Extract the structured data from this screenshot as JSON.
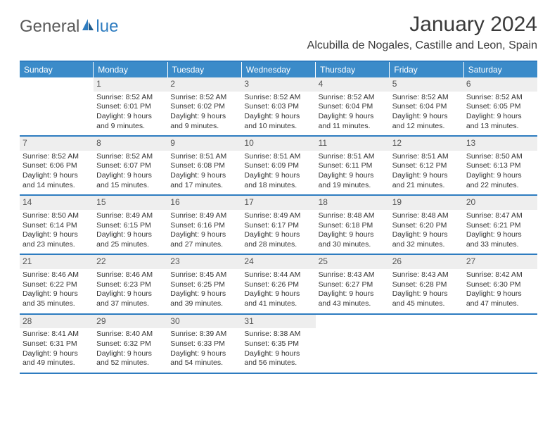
{
  "logo": {
    "part1": "General",
    "part2": "lue"
  },
  "title": "January 2024",
  "location": "Alcubilla de Nogales, Castille and Leon, Spain",
  "header_bg": "#3b8bc9",
  "rule_color": "#2e7cc0",
  "daynum_bg": "#eeeeee",
  "weekdays": [
    "Sunday",
    "Monday",
    "Tuesday",
    "Wednesday",
    "Thursday",
    "Friday",
    "Saturday"
  ],
  "weeks": [
    [
      {
        "n": "",
        "empty": true
      },
      {
        "n": "1",
        "sunrise": "Sunrise: 8:52 AM",
        "sunset": "Sunset: 6:01 PM",
        "d1": "Daylight: 9 hours",
        "d2": "and 9 minutes."
      },
      {
        "n": "2",
        "sunrise": "Sunrise: 8:52 AM",
        "sunset": "Sunset: 6:02 PM",
        "d1": "Daylight: 9 hours",
        "d2": "and 9 minutes."
      },
      {
        "n": "3",
        "sunrise": "Sunrise: 8:52 AM",
        "sunset": "Sunset: 6:03 PM",
        "d1": "Daylight: 9 hours",
        "d2": "and 10 minutes."
      },
      {
        "n": "4",
        "sunrise": "Sunrise: 8:52 AM",
        "sunset": "Sunset: 6:04 PM",
        "d1": "Daylight: 9 hours",
        "d2": "and 11 minutes."
      },
      {
        "n": "5",
        "sunrise": "Sunrise: 8:52 AM",
        "sunset": "Sunset: 6:04 PM",
        "d1": "Daylight: 9 hours",
        "d2": "and 12 minutes."
      },
      {
        "n": "6",
        "sunrise": "Sunrise: 8:52 AM",
        "sunset": "Sunset: 6:05 PM",
        "d1": "Daylight: 9 hours",
        "d2": "and 13 minutes."
      }
    ],
    [
      {
        "n": "7",
        "sunrise": "Sunrise: 8:52 AM",
        "sunset": "Sunset: 6:06 PM",
        "d1": "Daylight: 9 hours",
        "d2": "and 14 minutes."
      },
      {
        "n": "8",
        "sunrise": "Sunrise: 8:52 AM",
        "sunset": "Sunset: 6:07 PM",
        "d1": "Daylight: 9 hours",
        "d2": "and 15 minutes."
      },
      {
        "n": "9",
        "sunrise": "Sunrise: 8:51 AM",
        "sunset": "Sunset: 6:08 PM",
        "d1": "Daylight: 9 hours",
        "d2": "and 17 minutes."
      },
      {
        "n": "10",
        "sunrise": "Sunrise: 8:51 AM",
        "sunset": "Sunset: 6:09 PM",
        "d1": "Daylight: 9 hours",
        "d2": "and 18 minutes."
      },
      {
        "n": "11",
        "sunrise": "Sunrise: 8:51 AM",
        "sunset": "Sunset: 6:11 PM",
        "d1": "Daylight: 9 hours",
        "d2": "and 19 minutes."
      },
      {
        "n": "12",
        "sunrise": "Sunrise: 8:51 AM",
        "sunset": "Sunset: 6:12 PM",
        "d1": "Daylight: 9 hours",
        "d2": "and 21 minutes."
      },
      {
        "n": "13",
        "sunrise": "Sunrise: 8:50 AM",
        "sunset": "Sunset: 6:13 PM",
        "d1": "Daylight: 9 hours",
        "d2": "and 22 minutes."
      }
    ],
    [
      {
        "n": "14",
        "sunrise": "Sunrise: 8:50 AM",
        "sunset": "Sunset: 6:14 PM",
        "d1": "Daylight: 9 hours",
        "d2": "and 23 minutes."
      },
      {
        "n": "15",
        "sunrise": "Sunrise: 8:49 AM",
        "sunset": "Sunset: 6:15 PM",
        "d1": "Daylight: 9 hours",
        "d2": "and 25 minutes."
      },
      {
        "n": "16",
        "sunrise": "Sunrise: 8:49 AM",
        "sunset": "Sunset: 6:16 PM",
        "d1": "Daylight: 9 hours",
        "d2": "and 27 minutes."
      },
      {
        "n": "17",
        "sunrise": "Sunrise: 8:49 AM",
        "sunset": "Sunset: 6:17 PM",
        "d1": "Daylight: 9 hours",
        "d2": "and 28 minutes."
      },
      {
        "n": "18",
        "sunrise": "Sunrise: 8:48 AM",
        "sunset": "Sunset: 6:18 PM",
        "d1": "Daylight: 9 hours",
        "d2": "and 30 minutes."
      },
      {
        "n": "19",
        "sunrise": "Sunrise: 8:48 AM",
        "sunset": "Sunset: 6:20 PM",
        "d1": "Daylight: 9 hours",
        "d2": "and 32 minutes."
      },
      {
        "n": "20",
        "sunrise": "Sunrise: 8:47 AM",
        "sunset": "Sunset: 6:21 PM",
        "d1": "Daylight: 9 hours",
        "d2": "and 33 minutes."
      }
    ],
    [
      {
        "n": "21",
        "sunrise": "Sunrise: 8:46 AM",
        "sunset": "Sunset: 6:22 PM",
        "d1": "Daylight: 9 hours",
        "d2": "and 35 minutes."
      },
      {
        "n": "22",
        "sunrise": "Sunrise: 8:46 AM",
        "sunset": "Sunset: 6:23 PM",
        "d1": "Daylight: 9 hours",
        "d2": "and 37 minutes."
      },
      {
        "n": "23",
        "sunrise": "Sunrise: 8:45 AM",
        "sunset": "Sunset: 6:25 PM",
        "d1": "Daylight: 9 hours",
        "d2": "and 39 minutes."
      },
      {
        "n": "24",
        "sunrise": "Sunrise: 8:44 AM",
        "sunset": "Sunset: 6:26 PM",
        "d1": "Daylight: 9 hours",
        "d2": "and 41 minutes."
      },
      {
        "n": "25",
        "sunrise": "Sunrise: 8:43 AM",
        "sunset": "Sunset: 6:27 PM",
        "d1": "Daylight: 9 hours",
        "d2": "and 43 minutes."
      },
      {
        "n": "26",
        "sunrise": "Sunrise: 8:43 AM",
        "sunset": "Sunset: 6:28 PM",
        "d1": "Daylight: 9 hours",
        "d2": "and 45 minutes."
      },
      {
        "n": "27",
        "sunrise": "Sunrise: 8:42 AM",
        "sunset": "Sunset: 6:30 PM",
        "d1": "Daylight: 9 hours",
        "d2": "and 47 minutes."
      }
    ],
    [
      {
        "n": "28",
        "sunrise": "Sunrise: 8:41 AM",
        "sunset": "Sunset: 6:31 PM",
        "d1": "Daylight: 9 hours",
        "d2": "and 49 minutes."
      },
      {
        "n": "29",
        "sunrise": "Sunrise: 8:40 AM",
        "sunset": "Sunset: 6:32 PM",
        "d1": "Daylight: 9 hours",
        "d2": "and 52 minutes."
      },
      {
        "n": "30",
        "sunrise": "Sunrise: 8:39 AM",
        "sunset": "Sunset: 6:33 PM",
        "d1": "Daylight: 9 hours",
        "d2": "and 54 minutes."
      },
      {
        "n": "31",
        "sunrise": "Sunrise: 8:38 AM",
        "sunset": "Sunset: 6:35 PM",
        "d1": "Daylight: 9 hours",
        "d2": "and 56 minutes."
      },
      {
        "n": "",
        "empty": true
      },
      {
        "n": "",
        "empty": true
      },
      {
        "n": "",
        "empty": true
      }
    ]
  ]
}
